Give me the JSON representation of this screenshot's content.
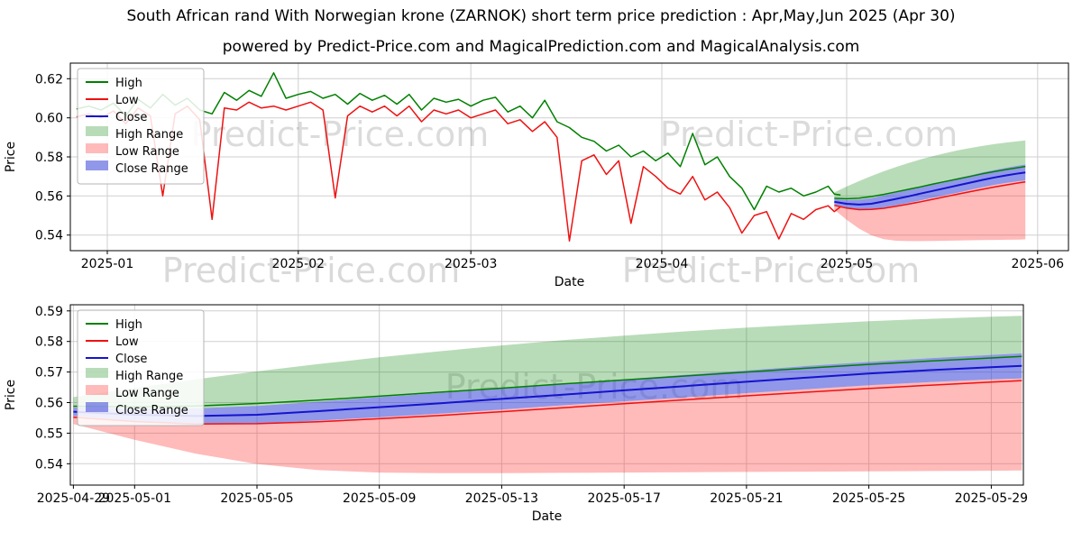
{
  "header": {
    "title": "South African rand With Norwegian krone (ZARNOK) short term price prediction : Apr,May,Jun 2025 (Apr 30)",
    "subtitle": "powered by Predict-Price.com and MagicalPrediction.com and MagicalAnalysis.com"
  },
  "watermark": {
    "text": "Predict-Price.com"
  },
  "colors": {
    "high": "#008000",
    "low": "#ee1111",
    "close": "#1414cc",
    "high_range": "rgba(0,128,0,0.28)",
    "low_range": "rgba(255,45,45,0.33)",
    "close_range": "rgba(55,65,215,0.55)",
    "grid": "#cfcfcf",
    "watermark_fill": "rgba(0,0,0,0.14)"
  },
  "legend": [
    {
      "label": "High",
      "swatch": "line",
      "color": "#008000"
    },
    {
      "label": "Low",
      "swatch": "line",
      "color": "#ee1111"
    },
    {
      "label": "Close",
      "swatch": "line",
      "color": "#1414cc"
    },
    {
      "label": "High Range",
      "swatch": "patch",
      "color": "rgba(0,128,0,0.28)"
    },
    {
      "label": "Low Range",
      "swatch": "patch",
      "color": "rgba(255,45,45,0.33)"
    },
    {
      "label": "Close Range",
      "swatch": "patch",
      "color": "rgba(55,65,215,0.55)"
    }
  ],
  "chart_data": [
    {
      "type": "line",
      "name": "history-with-forecast",
      "title": "",
      "xlabel": "Date",
      "ylabel": "Price",
      "ylim": [
        0.532,
        0.628
      ],
      "yticks": [
        0.54,
        0.56,
        0.58,
        0.6,
        0.62
      ],
      "xlim": [
        -6,
        156
      ],
      "x_unit": "days since 2025-01-01",
      "xticks": [
        {
          "v": 0,
          "label": "2025-01"
        },
        {
          "v": 31,
          "label": "2025-02"
        },
        {
          "v": 59,
          "label": "2025-03"
        },
        {
          "v": 90,
          "label": "2025-04"
        },
        {
          "v": 120,
          "label": "2025-05"
        },
        {
          "v": 151,
          "label": "2025-06"
        }
      ],
      "history": {
        "x": [
          -5,
          -3,
          -1,
          1,
          3,
          5,
          7,
          9,
          11,
          13,
          15,
          17,
          19,
          21,
          23,
          25,
          27,
          29,
          31,
          33,
          35,
          37,
          39,
          41,
          43,
          45,
          47,
          49,
          51,
          53,
          55,
          57,
          59,
          61,
          63,
          65,
          67,
          69,
          71,
          73,
          75,
          77,
          79,
          81,
          83,
          85,
          87,
          89,
          91,
          93,
          95,
          97,
          99,
          101,
          103,
          105,
          107,
          109,
          111,
          113,
          115,
          117,
          118,
          119
        ],
        "high": [
          0.6045,
          0.606,
          0.604,
          0.6075,
          0.601,
          0.6095,
          0.605,
          0.612,
          0.6065,
          0.61,
          0.604,
          0.602,
          0.613,
          0.609,
          0.614,
          0.611,
          0.623,
          0.61,
          0.612,
          0.6135,
          0.61,
          0.612,
          0.607,
          0.6125,
          0.609,
          0.6115,
          0.607,
          0.612,
          0.604,
          0.61,
          0.608,
          0.6095,
          0.606,
          0.609,
          0.6105,
          0.603,
          0.606,
          0.6,
          0.609,
          0.598,
          0.595,
          0.59,
          0.588,
          0.583,
          0.586,
          0.58,
          0.583,
          0.578,
          0.582,
          0.575,
          0.592,
          0.576,
          0.58,
          0.57,
          0.564,
          0.553,
          0.565,
          0.562,
          0.564,
          0.56,
          0.562,
          0.565,
          0.561,
          0.5605
        ],
        "low": [
          0.6005,
          0.602,
          0.6,
          0.6035,
          0.597,
          0.605,
          0.601,
          0.56,
          0.602,
          0.606,
          0.599,
          0.548,
          0.605,
          0.604,
          0.608,
          0.605,
          0.606,
          0.604,
          0.606,
          0.608,
          0.604,
          0.559,
          0.601,
          0.606,
          0.603,
          0.606,
          0.601,
          0.606,
          0.598,
          0.604,
          0.602,
          0.604,
          0.6,
          0.602,
          0.604,
          0.597,
          0.599,
          0.593,
          0.598,
          0.59,
          0.537,
          0.578,
          0.581,
          0.571,
          0.578,
          0.546,
          0.575,
          0.57,
          0.564,
          0.561,
          0.57,
          0.558,
          0.562,
          0.554,
          0.541,
          0.55,
          0.552,
          0.538,
          0.551,
          0.548,
          0.553,
          0.555,
          0.552,
          0.5545
        ]
      },
      "forecast": {
        "x": [
          118,
          120,
          122,
          124,
          126,
          128,
          130,
          132,
          134,
          136,
          138,
          140,
          142,
          144,
          146,
          148,
          149
        ],
        "close": [
          0.557,
          0.556,
          0.5556,
          0.556,
          0.5572,
          0.5585,
          0.5598,
          0.5612,
          0.5626,
          0.564,
          0.5654,
          0.5668,
          0.5682,
          0.5695,
          0.5706,
          0.5716,
          0.572
        ],
        "high": [
          0.5588,
          0.5586,
          0.5589,
          0.5597,
          0.5608,
          0.5621,
          0.5634,
          0.5647,
          0.5661,
          0.5674,
          0.5687,
          0.57,
          0.5713,
          0.5725,
          0.5736,
          0.5746,
          0.5751
        ],
        "low": [
          0.5552,
          0.5538,
          0.553,
          0.5531,
          0.5537,
          0.5547,
          0.5558,
          0.557,
          0.5583,
          0.5596,
          0.5609,
          0.5622,
          0.5634,
          0.5646,
          0.5657,
          0.5667,
          0.5672
        ],
        "high_range_top": [
          0.5618,
          0.5648,
          0.5676,
          0.5702,
          0.5726,
          0.5748,
          0.5768,
          0.5787,
          0.5804,
          0.5819,
          0.5833,
          0.5845,
          0.5856,
          0.5866,
          0.5874,
          0.5881,
          0.5884
        ],
        "low_range_bottom": [
          0.553,
          0.5478,
          0.5433,
          0.5399,
          0.5379,
          0.5371,
          0.5369,
          0.5369,
          0.537,
          0.5371,
          0.5372,
          0.5373,
          0.5374,
          0.5375,
          0.5376,
          0.5377,
          0.5378
        ],
        "close_range_top": [
          0.5584,
          0.558,
          0.5581,
          0.5589,
          0.5603,
          0.5618,
          0.5632,
          0.5647,
          0.5661,
          0.5676,
          0.5691,
          0.5705,
          0.572,
          0.5733,
          0.5745,
          0.5756,
          0.5761
        ],
        "close_range_bottom": [
          0.5556,
          0.554,
          0.5531,
          0.5531,
          0.5541,
          0.5552,
          0.5564,
          0.5577,
          0.5591,
          0.5604,
          0.5617,
          0.5631,
          0.5644,
          0.5657,
          0.5667,
          0.5676,
          0.5679
        ]
      }
    },
    {
      "type": "line",
      "name": "forecast-detail",
      "title": "",
      "xlabel": "Date",
      "ylabel": "Price",
      "ylim": [
        0.533,
        0.592
      ],
      "yticks": [
        0.54,
        0.55,
        0.56,
        0.57,
        0.58,
        0.59
      ],
      "xlim": [
        -0.1,
        31.05
      ],
      "x_unit": "days since 2025-04-29",
      "xticks": [
        {
          "v": 0,
          "label": "2025-04-29"
        },
        {
          "v": 2,
          "label": "2025-05-01"
        },
        {
          "v": 6,
          "label": "2025-05-05"
        },
        {
          "v": 10,
          "label": "2025-05-09"
        },
        {
          "v": 14,
          "label": "2025-05-13"
        },
        {
          "v": 18,
          "label": "2025-05-17"
        },
        {
          "v": 22,
          "label": "2025-05-21"
        },
        {
          "v": 26,
          "label": "2025-05-25"
        },
        {
          "v": 30,
          "label": "2025-05-29"
        }
      ],
      "forecast": {
        "x": [
          0,
          2,
          4,
          6,
          8,
          10,
          12,
          14,
          16,
          18,
          20,
          22,
          24,
          26,
          28,
          30,
          31
        ],
        "close": [
          0.557,
          0.556,
          0.5556,
          0.556,
          0.5572,
          0.5585,
          0.5598,
          0.5612,
          0.5626,
          0.564,
          0.5654,
          0.5668,
          0.5682,
          0.5695,
          0.5706,
          0.5716,
          0.572
        ],
        "high": [
          0.5588,
          0.5586,
          0.5589,
          0.5597,
          0.5608,
          0.5621,
          0.5634,
          0.5647,
          0.5661,
          0.5674,
          0.5687,
          0.57,
          0.5713,
          0.5725,
          0.5736,
          0.5746,
          0.5751
        ],
        "low": [
          0.5552,
          0.5538,
          0.553,
          0.5531,
          0.5537,
          0.5547,
          0.5558,
          0.557,
          0.5583,
          0.5596,
          0.5609,
          0.5622,
          0.5634,
          0.5646,
          0.5657,
          0.5667,
          0.5672
        ],
        "high_range_top": [
          0.5618,
          0.5648,
          0.5676,
          0.5702,
          0.5726,
          0.5748,
          0.5768,
          0.5787,
          0.5804,
          0.5819,
          0.5833,
          0.5845,
          0.5856,
          0.5866,
          0.5874,
          0.5881,
          0.5884
        ],
        "low_range_bottom": [
          0.553,
          0.5478,
          0.5433,
          0.5399,
          0.5379,
          0.5371,
          0.5369,
          0.5369,
          0.537,
          0.5371,
          0.5372,
          0.5373,
          0.5374,
          0.5375,
          0.5376,
          0.5377,
          0.5378
        ],
        "close_range_top": [
          0.5584,
          0.558,
          0.5581,
          0.5589,
          0.5603,
          0.5618,
          0.5632,
          0.5647,
          0.5661,
          0.5676,
          0.5691,
          0.5705,
          0.572,
          0.5733,
          0.5745,
          0.5756,
          0.5761
        ],
        "close_range_bottom": [
          0.5556,
          0.554,
          0.5531,
          0.5531,
          0.5541,
          0.5552,
          0.5564,
          0.5577,
          0.5591,
          0.5604,
          0.5617,
          0.5631,
          0.5644,
          0.5657,
          0.5667,
          0.5676,
          0.5679
        ]
      }
    }
  ]
}
